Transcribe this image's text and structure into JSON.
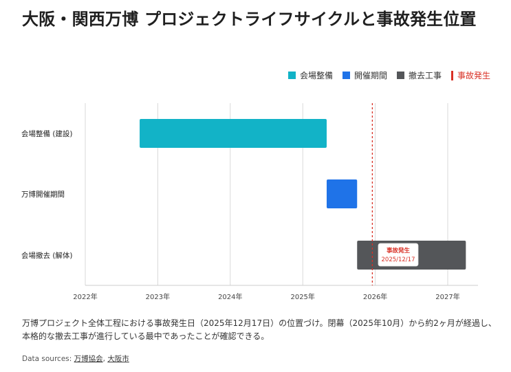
{
  "title": "大阪・関西万博 プロジェクトライフサイクルと事故発生位置",
  "legend": [
    {
      "label": "会場整備",
      "color": "#12b3c7",
      "kind": "box"
    },
    {
      "label": "開催期間",
      "color": "#1f73e8",
      "kind": "box"
    },
    {
      "label": "撤去工事",
      "color": "#545659",
      "kind": "box"
    },
    {
      "label": "事故発生",
      "color": "#d93025",
      "kind": "line"
    }
  ],
  "chart_data": {
    "type": "bar",
    "orientation": "horizontal-range",
    "title": "大阪・関西万博 プロジェクトライフサイクルと事故発生位置",
    "xlabel": "",
    "ylabel": "",
    "xlim": [
      2022.0,
      2027.4
    ],
    "x_ticks": [
      2022,
      2023,
      2024,
      2025,
      2026,
      2027
    ],
    "x_tick_labels": [
      "2022年",
      "2023年",
      "2024年",
      "2025年",
      "2026年",
      "2027年"
    ],
    "grid": true,
    "legend_position": "top-right",
    "categories": [
      "会場整備 (建設)",
      "万博開催期間",
      "会場撤去 (解体)"
    ],
    "series": [
      {
        "name": "会場整備",
        "category": "会場整備 (建設)",
        "start": 2022.75,
        "end": 2025.33,
        "color": "#12b3c7"
      },
      {
        "name": "開催期間",
        "category": "万博開催期間",
        "start": 2025.33,
        "end": 2025.75,
        "color": "#1f73e8"
      },
      {
        "name": "撤去工事",
        "category": "会場撤去 (解体)",
        "start": 2025.75,
        "end": 2027.25,
        "color": "#545659"
      }
    ],
    "annotation": {
      "name": "事故発生",
      "x": 2025.96,
      "label_line1": "事故発生",
      "label_line2": "2025/12/17",
      "color": "#d93025"
    }
  },
  "caption": "万博プロジェクト全体工程における事故発生日（2025年12月17日）の位置づけ。閉幕（2025年10月）から約2ヶ月が経過し、本格的な撤去工事が進行している最中であったことが確認できる。",
  "sources": {
    "prefix": "Data sources: ",
    "links": [
      "万博協会",
      "大阪市"
    ],
    "separator": ", "
  }
}
